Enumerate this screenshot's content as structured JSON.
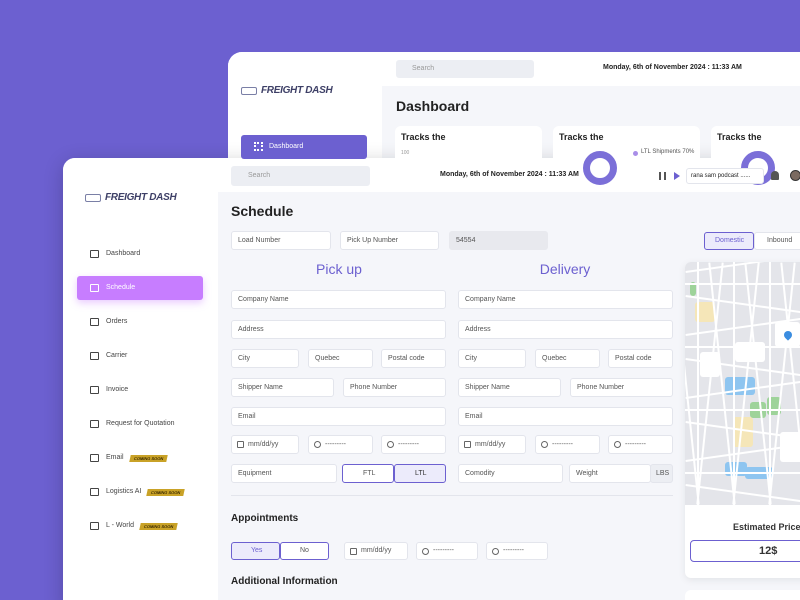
{
  "back_window": {
    "logo": "FREIGHT DASH",
    "search": "Search",
    "date": "Monday, 6th of November 2024 : 11:33 AM",
    "nav": "Dashboard",
    "heading": "Dashboard",
    "cards": [
      "Tracks the",
      "Tracks the",
      "Tracks the"
    ],
    "axis_label": "100",
    "legend": "LTL Shipments 70%"
  },
  "sidebar": {
    "logo": "FREIGHT DASH",
    "nav": [
      {
        "label": "Dashboard"
      },
      {
        "label": "Schedule"
      },
      {
        "label": "Orders"
      },
      {
        "label": "Carrier"
      },
      {
        "label": "Invoice"
      },
      {
        "label": "Request for Quotation"
      },
      {
        "label": "Email",
        "badge": "COMING SOON"
      },
      {
        "label": "Logistics AI",
        "badge": "COMING SOON"
      },
      {
        "label": "L - World",
        "badge": "COMING SOON"
      }
    ]
  },
  "topbar": {
    "search": "Search",
    "date": "Monday, 6th of November 2024 : 11:33 AM",
    "podcast": "rana sam podcast ......"
  },
  "schedule": {
    "title": "Schedule",
    "top_fields": [
      "Load Number",
      "Pick Up Number",
      "54554"
    ],
    "shipment_types": [
      "Domestic",
      "Inbound"
    ],
    "pickup": {
      "heading": "Pick up",
      "rows": [
        [
          "Company Name"
        ],
        [
          "Address"
        ],
        [
          "City",
          "Quebec",
          "Postal code"
        ],
        [
          "Shipper Name",
          "Phone Number"
        ],
        [
          "Email"
        ],
        [
          "mm/dd/yy",
          "---------",
          "---------"
        ]
      ],
      "equipment": {
        "label": "Equipment",
        "options": [
          "FTL",
          "LTL"
        ]
      }
    },
    "delivery": {
      "heading": "Delivery",
      "rows": [
        [
          "Company Name"
        ],
        [
          "Address"
        ],
        [
          "City",
          "Quebec",
          "Postal code"
        ],
        [
          "Shipper Name",
          "Phone Number"
        ],
        [
          "Email"
        ],
        [
          "mm/dd/yy",
          "---------",
          "---------"
        ]
      ],
      "fields": [
        "Comodity",
        "Weight"
      ],
      "unit": "LBS"
    },
    "appointments": {
      "title": "Appointments",
      "options": [
        "Yes",
        "No"
      ],
      "fields": [
        "mm/dd/yy",
        "---------",
        "---------"
      ]
    },
    "additional": "Additional Information",
    "map_card": {
      "label": "Estimated Price",
      "price": "12$"
    }
  }
}
